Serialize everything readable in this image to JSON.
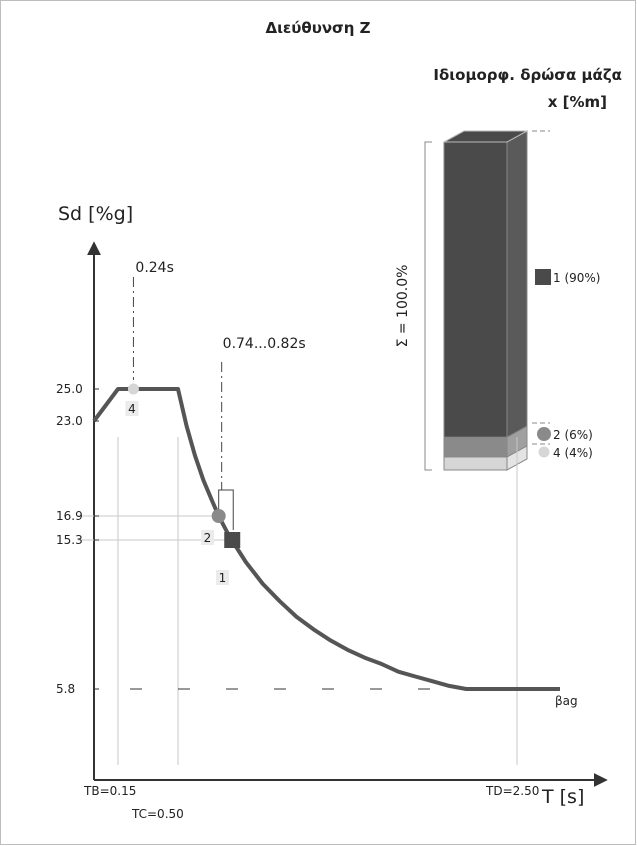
{
  "title": "Διεύθυνση Z",
  "mass_title_line1": "Ιδιομορφ. δρώσα μάζα",
  "mass_title_line2": "x [%m]",
  "chart_data": [
    {
      "type": "line",
      "ylabel": "Sd [%g]",
      "xlabel": "T [s]",
      "spectrum": {
        "x": [
          0,
          0.15,
          0.5,
          0.55,
          0.6,
          0.65,
          0.7,
          0.74,
          0.8,
          0.9,
          1.0,
          1.1,
          1.2,
          1.3,
          1.4,
          1.5,
          1.6,
          1.7,
          1.8,
          1.9,
          2.0,
          2.1,
          2.2,
          2.3,
          2.5,
          2.7
        ],
        "y": [
          23.0,
          25.0,
          25.0,
          22.7,
          20.8,
          19.2,
          17.9,
          16.9,
          15.6,
          13.9,
          12.5,
          11.4,
          10.4,
          9.6,
          8.9,
          8.3,
          7.8,
          7.4,
          6.9,
          6.6,
          6.3,
          6.0,
          5.8,
          5.8,
          5.8,
          5.8
        ]
      },
      "y_ticks": [
        "25.0",
        "23.0",
        "16.9",
        "15.3",
        "5.8"
      ],
      "y_tick_values": [
        25.0,
        23.0,
        16.9,
        15.3,
        5.8
      ],
      "x_ticks": [
        "TB=0.15",
        "TC=0.50",
        "TD=2.50"
      ],
      "x_tick_values": [
        0.15,
        0.5,
        2.5
      ],
      "beta_ag_label": "βag",
      "beta_ag_value": 5.8,
      "period_annotations": [
        {
          "label": "0.24s",
          "T": 0.24
        },
        {
          "label": "0.74...0.82s",
          "T_from": 0.74,
          "T_to": 0.82
        }
      ],
      "modes": [
        {
          "mode": "4",
          "T": 0.24,
          "Sd": 25.0,
          "marker": "circle",
          "color": "#d6d6d6"
        },
        {
          "mode": "2",
          "T": 0.74,
          "Sd": 16.9,
          "marker": "circle",
          "color": "#8a8a8a"
        },
        {
          "mode": "1",
          "T": 0.82,
          "Sd": 15.3,
          "marker": "square",
          "color": "#4a4a4a"
        }
      ]
    },
    {
      "type": "bar",
      "stacked": true,
      "total_label": "Σ = 100.0%",
      "series": [
        {
          "name": "1 (90%)",
          "value": 90,
          "color": "#4a4a4a",
          "marker": "square"
        },
        {
          "name": "2 (6%)",
          "value": 6,
          "color": "#8a8a8a",
          "marker": "circle"
        },
        {
          "name": "4 (4%)",
          "value": 4,
          "color": "#d6d6d6",
          "marker": "circle"
        }
      ]
    }
  ]
}
